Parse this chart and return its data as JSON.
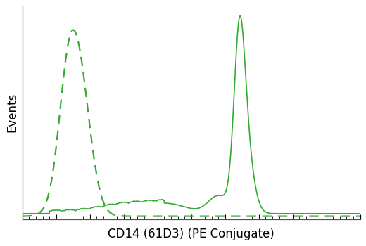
{
  "title": "",
  "xlabel": "CD14 (61D3) (PE Conjugate)",
  "ylabel": "Events",
  "background_color": "#ffffff",
  "plot_bg_color": "#ffffff",
  "line_color": "#33aa33",
  "xlim": [
    0,
    1000
  ],
  "ylim": [
    0,
    1.05
  ],
  "xlabel_fontsize": 12,
  "ylabel_fontsize": 12,
  "figsize": [
    5.2,
    3.5
  ],
  "dpi": 100
}
